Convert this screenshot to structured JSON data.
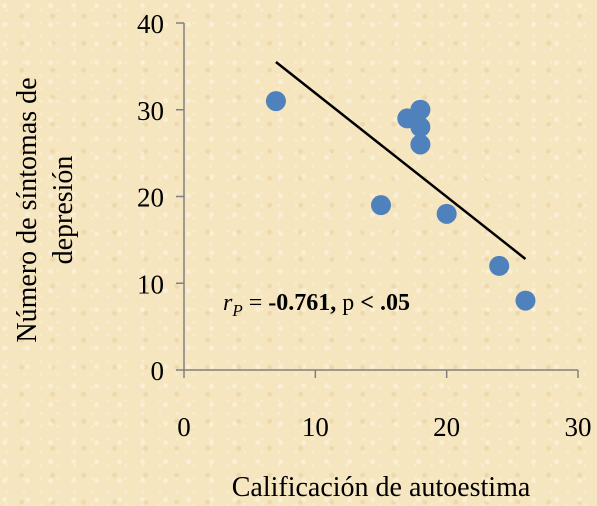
{
  "chart_data": {
    "type": "scatter",
    "title": "",
    "xlabel": "Calificación de autoestima",
    "ylabel_lines": [
      "Número de síntomas de",
      "depresión"
    ],
    "xlim": [
      0,
      30
    ],
    "ylim": [
      0,
      40
    ],
    "xticks": [
      "0",
      "10",
      "20",
      "30"
    ],
    "yticks": [
      "0",
      "10",
      "20",
      "30",
      "40"
    ],
    "grid": false,
    "points": [
      {
        "x": 7,
        "y": 31
      },
      {
        "x": 15,
        "y": 19
      },
      {
        "x": 17,
        "y": 29
      },
      {
        "x": 18,
        "y": 30
      },
      {
        "x": 18,
        "y": 28
      },
      {
        "x": 18,
        "y": 26
      },
      {
        "x": 20,
        "y": 18
      },
      {
        "x": 24,
        "y": 12
      },
      {
        "x": 26,
        "y": 8
      }
    ],
    "trendline": {
      "x1": 7,
      "y1": 35.5,
      "x2": 26,
      "y2": 12.8
    },
    "annotation": {
      "r_symbol": "r",
      "r_sub": "P",
      "equals": " = ",
      "value": "-0.761,",
      "p_text": " p ",
      "p_value": "< .05"
    },
    "colors": {
      "marker": "#4f81bd",
      "line": "#000000"
    }
  }
}
